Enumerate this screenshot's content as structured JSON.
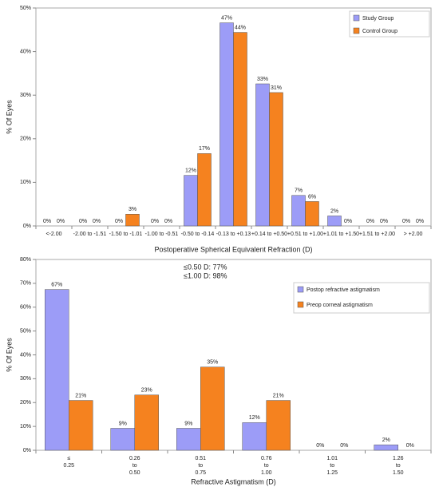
{
  "chart_data": [
    {
      "type": "bar",
      "x_label": "Postoperative Spherical Equivalent Refraction (D)",
      "y_label": "% Of Eyes",
      "categories": [
        [
          "<-2.00"
        ],
        [
          "-2.00 to -1.51"
        ],
        [
          "-1.50 to -1.01"
        ],
        [
          "-1.00 to -0.51"
        ],
        [
          "-0.50 to -0.14"
        ],
        [
          "-0.13 to +0.13"
        ],
        [
          "+0.14 to +0.50"
        ],
        [
          "+0.51 to +1.00"
        ],
        [
          "+1.01 to +1.50"
        ],
        [
          "+1.51 to +2.00"
        ],
        [
          "> +2.00"
        ]
      ],
      "series": [
        {
          "name": "Study Group",
          "color": "#9c9cf7",
          "values": [
            0,
            0,
            0,
            0,
            11.6,
            46.6,
            32.6,
            7,
            2.3,
            0,
            0
          ],
          "value_labels": [
            "0%",
            "0%",
            "0%",
            "0%",
            "12%",
            "47%",
            "33%",
            "7%",
            "2%",
            "0%",
            "0%"
          ]
        },
        {
          "name": "Control Group",
          "color": "#f5821f",
          "values": [
            0,
            0,
            2.7,
            0,
            16.6,
            44.4,
            30.6,
            5.6,
            0,
            0,
            0
          ],
          "value_labels": [
            "0%",
            "0%",
            "3%",
            "0%",
            "17%",
            "44%",
            "31%",
            "6%",
            "0%",
            "0%",
            "0%"
          ]
        }
      ],
      "ylim": [
        0,
        50
      ],
      "yticks": [
        {
          "value": 0,
          "label": "0%"
        },
        {
          "value": 10,
          "label": "10%"
        },
        {
          "value": 20,
          "label": "20%"
        },
        {
          "value": 30,
          "label": "30%"
        },
        {
          "value": 40,
          "label": "40%"
        },
        {
          "value": 50,
          "label": "50%"
        }
      ],
      "grid": false,
      "legend": "upper right"
    },
    {
      "type": "bar",
      "x_label": "Refractive Astigmatism (D)",
      "y_label": "% Of Eyes",
      "annotations": [
        "≤0.50 D: 77%",
        "≤1.00 D: 98%"
      ],
      "categories": [
        [
          "≤",
          "0.25"
        ],
        [
          "0.26",
          "to",
          "0.50"
        ],
        [
          "0.51",
          "to",
          "0.75"
        ],
        [
          "0.76",
          "to",
          "1.00"
        ],
        [
          "1.01",
          "to",
          "1.25"
        ],
        [
          "1.26",
          "to",
          "1.50"
        ]
      ],
      "series": [
        {
          "name": "Postop refractive astigmatism",
          "color": "#9c9cf7",
          "values": [
            67.4,
            9.2,
            9.2,
            11.6,
            0,
            2.3
          ],
          "value_labels": [
            "67%",
            "9%",
            "9%",
            "12%",
            "0%",
            "2%"
          ]
        },
        {
          "name": "Preop corneal astigmatism",
          "color": "#f5821f",
          "values": [
            20.9,
            23.2,
            34.9,
            20.9,
            0,
            0
          ],
          "value_labels": [
            "21%",
            "23%",
            "35%",
            "21%",
            "0%",
            "0%"
          ]
        }
      ],
      "ylim": [
        0,
        80
      ],
      "yticks": [
        {
          "value": 0,
          "label": "0%"
        },
        {
          "value": 10,
          "label": "10%"
        },
        {
          "value": 20,
          "label": "20%"
        },
        {
          "value": 30,
          "label": "30%"
        },
        {
          "value": 40,
          "label": "40%"
        },
        {
          "value": 50,
          "label": "50%"
        },
        {
          "value": 60,
          "label": "60%"
        },
        {
          "value": 70,
          "label": "70%"
        },
        {
          "value": 80,
          "label": "80%"
        }
      ],
      "grid": false,
      "legend": "upper right"
    }
  ]
}
